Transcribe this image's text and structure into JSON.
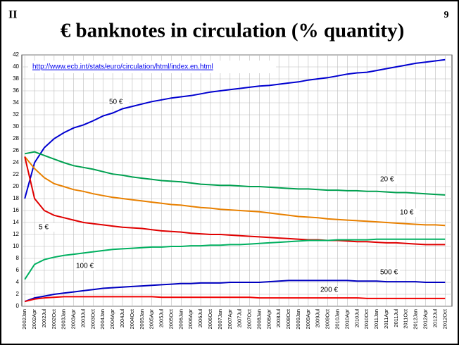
{
  "page": {
    "corner_left": "II",
    "corner_right": "9"
  },
  "chart_data": {
    "type": "line",
    "title": "€ banknotes in circulation (% quantity)",
    "annotations": [
      "http://www.ecb.int/stats/euro/circulation/html/index.en.html"
    ],
    "categories": [
      "2002Jan",
      "2002Apr",
      "2002Jul",
      "2002Oct",
      "2003Jan",
      "2003Apr",
      "2003Jul",
      "2003Oct",
      "2004Jan",
      "2004Apr",
      "2004Jul",
      "2004Oct",
      "2005Jan",
      "2005Apr",
      "2005Jul",
      "2005Oct",
      "2006Jan",
      "2006Apr",
      "2006Jul",
      "2006Oct",
      "2007Jan",
      "2007Apr",
      "2007Jul",
      "2007Oct",
      "2008Jan",
      "2008Apr",
      "2008Jul",
      "2008Oct",
      "2009Jan",
      "2009Apr",
      "2009Jul",
      "2009Oct",
      "2010Jan",
      "2010Apr",
      "2010Jul",
      "2010Oct",
      "2011Jan",
      "2011Apr",
      "2011Jul",
      "2011Oct",
      "2012Jan",
      "2012Apr",
      "2012Jul",
      "2012Oct"
    ],
    "series": [
      {
        "name": "50 €",
        "color": "#0000d0",
        "values": [
          18,
          24,
          26.5,
          28,
          29,
          29.8,
          30.3,
          31,
          31.8,
          32.3,
          33,
          33.4,
          33.8,
          34.2,
          34.5,
          34.8,
          35,
          35.2,
          35.5,
          35.8,
          36,
          36.2,
          36.4,
          36.6,
          36.8,
          36.9,
          37.1,
          37.3,
          37.5,
          37.8,
          38,
          38.2,
          38.5,
          38.8,
          39,
          39.1,
          39.4,
          39.7,
          40,
          40.3,
          40.6,
          40.8,
          41,
          41.2
        ]
      },
      {
        "name": "20 €",
        "color": "#00a050",
        "values": [
          25.5,
          25.8,
          25.2,
          24.6,
          24,
          23.5,
          23.2,
          22.9,
          22.5,
          22.1,
          21.9,
          21.6,
          21.4,
          21.2,
          21,
          20.9,
          20.8,
          20.6,
          20.4,
          20.3,
          20.2,
          20.2,
          20.1,
          20,
          20,
          19.9,
          19.8,
          19.7,
          19.6,
          19.6,
          19.5,
          19.4,
          19.4,
          19.3,
          19.3,
          19.2,
          19.2,
          19.1,
          19,
          19,
          18.9,
          18.8,
          18.7,
          18.6
        ]
      },
      {
        "name": "10 €",
        "color": "#e88000",
        "values": [
          25,
          23,
          21.5,
          20.5,
          20,
          19.5,
          19.2,
          18.8,
          18.5,
          18.2,
          18,
          17.8,
          17.6,
          17.4,
          17.2,
          17,
          16.9,
          16.7,
          16.5,
          16.4,
          16.2,
          16.1,
          16,
          15.9,
          15.8,
          15.6,
          15.4,
          15.2,
          15,
          14.9,
          14.8,
          14.6,
          14.5,
          14.4,
          14.3,
          14.2,
          14.1,
          14,
          13.9,
          13.8,
          13.7,
          13.6,
          13.6,
          13.5
        ]
      },
      {
        "name": "5 €",
        "color": "#e00000",
        "values": [
          25,
          18,
          16,
          15.2,
          14.8,
          14.4,
          14,
          13.8,
          13.6,
          13.4,
          13.2,
          13.1,
          13,
          12.8,
          12.6,
          12.5,
          12.4,
          12.2,
          12.1,
          12,
          12,
          11.9,
          11.8,
          11.7,
          11.6,
          11.5,
          11.4,
          11.3,
          11.2,
          11.1,
          11.1,
          11,
          11,
          10.9,
          10.8,
          10.8,
          10.7,
          10.6,
          10.6,
          10.5,
          10.4,
          10.3,
          10.3,
          10.3
        ]
      },
      {
        "name": "100 €",
        "color": "#00b060",
        "values": [
          4.5,
          7,
          7.8,
          8.2,
          8.5,
          8.7,
          8.9,
          9.1,
          9.3,
          9.5,
          9.6,
          9.7,
          9.8,
          9.9,
          9.9,
          10,
          10,
          10.1,
          10.1,
          10.2,
          10.2,
          10.3,
          10.3,
          10.4,
          10.5,
          10.6,
          10.7,
          10.8,
          10.9,
          11,
          11,
          11,
          11.1,
          11.1,
          11.1,
          11.1,
          11.2,
          11.2,
          11.2,
          11.2,
          11.2,
          11.2,
          11.2,
          11.2
        ]
      },
      {
        "name": "500 €",
        "color": "#0000c0",
        "values": [
          0.8,
          1.4,
          1.7,
          2,
          2.2,
          2.4,
          2.6,
          2.8,
          3,
          3.1,
          3.2,
          3.3,
          3.4,
          3.5,
          3.6,
          3.7,
          3.8,
          3.8,
          3.9,
          3.9,
          3.9,
          4,
          4,
          4,
          4,
          4.1,
          4.2,
          4.3,
          4.3,
          4.3,
          4.3,
          4.3,
          4.3,
          4.3,
          4.2,
          4.2,
          4.2,
          4.1,
          4.1,
          4.1,
          4.1,
          4,
          4,
          4
        ]
      },
      {
        "name": "200 €",
        "color": "#f00000",
        "values": [
          0.8,
          1.2,
          1.4,
          1.5,
          1.6,
          1.6,
          1.6,
          1.6,
          1.6,
          1.6,
          1.6,
          1.6,
          1.6,
          1.6,
          1.5,
          1.5,
          1.5,
          1.5,
          1.5,
          1.5,
          1.5,
          1.5,
          1.5,
          1.5,
          1.4,
          1.4,
          1.4,
          1.4,
          1.4,
          1.4,
          1.4,
          1.4,
          1.4,
          1.4,
          1.4,
          1.3,
          1.3,
          1.3,
          1.3,
          1.3,
          1.3,
          1.3,
          1.3,
          1.3
        ]
      }
    ],
    "ylim": [
      0,
      42
    ],
    "yticks": [
      0,
      2,
      4,
      6,
      8,
      10,
      12,
      14,
      16,
      18,
      20,
      22,
      24,
      26,
      28,
      30,
      32,
      34,
      36,
      38,
      40,
      42
    ],
    "grid": true
  }
}
